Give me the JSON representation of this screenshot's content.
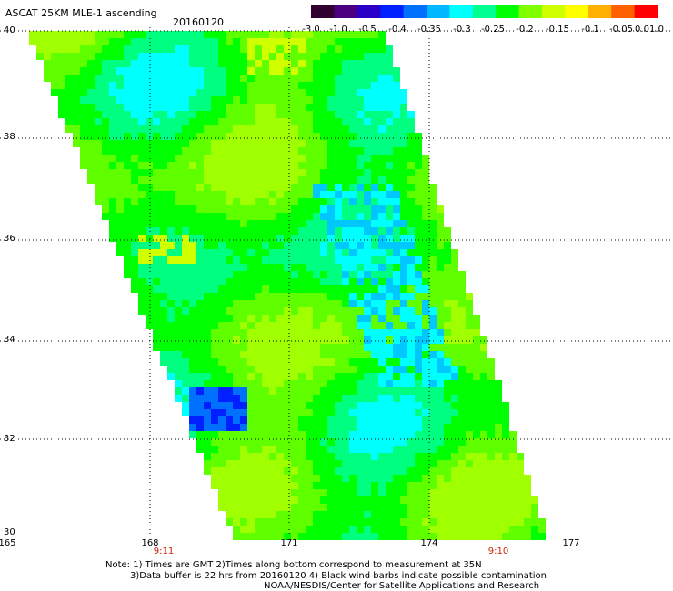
{
  "header": {
    "title": "ASCAT 25KM MLE-1 ascending",
    "date": "20160120"
  },
  "colorbar": {
    "colors": [
      "#300030",
      "#4a0080",
      "#2a00c8",
      "#0020ff",
      "#0070ff",
      "#00b8ff",
      "#00ffff",
      "#00ff90",
      "#00ff00",
      "#80ff00",
      "#d0ff00",
      "#ffff00",
      "#ffb000",
      "#ff6000",
      "#ff0000"
    ],
    "labels": [
      "-3.0",
      "-1.0",
      "-0.5",
      "-0.4",
      "-0.35",
      "-0.3",
      "-0.25",
      "-0.2",
      "-0.15",
      "-0.1",
      "-0.05",
      "0.0",
      "1.0"
    ]
  },
  "axes": {
    "y_labels": [
      "40",
      "38",
      "36",
      "34",
      "32",
      "30"
    ],
    "x_labels": [
      "165",
      "168",
      "171",
      "174",
      "177"
    ],
    "time_labels": [
      "9:11",
      "9:10"
    ]
  },
  "notes": {
    "line1": "Note: 1) Times are GMT 2)Times along bottom correspond to measurement at 35N",
    "line2": "3)Data buffer is 22 hrs from 20160120 4) Black wind barbs indicate possible contamination",
    "line3": "NOAA/NESDIS/Center for Satellite Applications and Research"
  }
}
